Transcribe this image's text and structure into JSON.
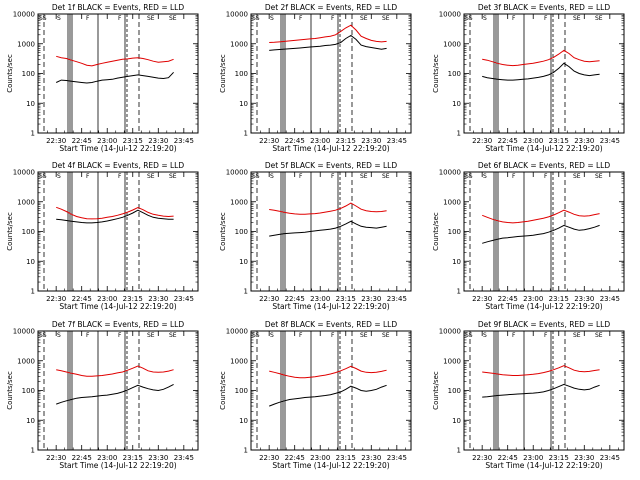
{
  "figure": {
    "xlabel": "Start Time (14-Jul-12 22:19:20)",
    "ylabel": "Counts/sec",
    "ytick_labels": [
      "1",
      "10",
      "100",
      "1000",
      "10000"
    ],
    "xtick_labels": [
      "22:30",
      "22:45",
      "23:00",
      "23:15",
      "23:30",
      "23:45"
    ],
    "corner_labels": [
      "SS",
      "S",
      "F",
      "F",
      "SE",
      "SE"
    ]
  },
  "chart_data": [
    {
      "type": "line",
      "title": "Det 1f BLACK = Events, RED = LLD",
      "xlabel": "Start Time (14-Jul-12 22:19:20)",
      "ylabel": "Counts/sec",
      "yscale": "log",
      "ylim": [
        1,
        10000
      ],
      "x_minutes": [
        30,
        33,
        36,
        39,
        42,
        45,
        48,
        51,
        54,
        57,
        60,
        63,
        66,
        69,
        72,
        75,
        78,
        81,
        84,
        87,
        90,
        93,
        96,
        99
      ],
      "series": [
        {
          "name": "Events",
          "color": "#000000",
          "values": [
            50,
            60,
            58,
            55,
            52,
            50,
            48,
            50,
            55,
            60,
            62,
            64,
            70,
            75,
            80,
            85,
            90,
            85,
            80,
            75,
            70,
            68,
            72,
            110
          ]
        },
        {
          "name": "LLD",
          "color": "#e00000",
          "values": [
            380,
            340,
            320,
            280,
            250,
            220,
            190,
            180,
            200,
            220,
            240,
            260,
            280,
            300,
            310,
            330,
            340,
            320,
            290,
            260,
            240,
            250,
            260,
            300
          ]
        }
      ]
    },
    {
      "type": "line",
      "title": "Det 2f BLACK = Events, RED = LLD",
      "xlabel": "Start Time (14-Jul-12 22:19:20)",
      "ylabel": "Counts/sec",
      "yscale": "log",
      "ylim": [
        1,
        10000
      ],
      "x_minutes": [
        30,
        33,
        36,
        39,
        42,
        45,
        48,
        51,
        54,
        57,
        60,
        63,
        66,
        69,
        72,
        75,
        78,
        81,
        84,
        87,
        90,
        93,
        96,
        99
      ],
      "series": [
        {
          "name": "Events",
          "color": "#000000",
          "values": [
            600,
            620,
            640,
            660,
            680,
            700,
            720,
            750,
            780,
            800,
            830,
            870,
            900,
            950,
            1100,
            1500,
            1900,
            1400,
            900,
            800,
            750,
            700,
            650,
            700
          ]
        },
        {
          "name": "LLD",
          "color": "#e00000",
          "values": [
            1100,
            1120,
            1150,
            1200,
            1250,
            1300,
            1350,
            1400,
            1450,
            1500,
            1600,
            1700,
            1800,
            2000,
            2600,
            3400,
            4200,
            2900,
            1800,
            1500,
            1300,
            1200,
            1150,
            1200
          ]
        }
      ]
    },
    {
      "type": "line",
      "title": "Det 3f BLACK = Events, RED = LLD",
      "xlabel": "Start Time (14-Jul-12 22:19:20)",
      "ylabel": "Counts/sec",
      "yscale": "log",
      "ylim": [
        1,
        10000
      ],
      "x_minutes": [
        30,
        33,
        36,
        39,
        42,
        45,
        48,
        51,
        54,
        57,
        60,
        63,
        66,
        69,
        72,
        75,
        78,
        81,
        84,
        87,
        90,
        93,
        96,
        99
      ],
      "series": [
        {
          "name": "Events",
          "color": "#000000",
          "values": [
            80,
            72,
            68,
            64,
            62,
            60,
            60,
            62,
            64,
            66,
            70,
            74,
            80,
            90,
            110,
            150,
            220,
            170,
            120,
            100,
            90,
            85,
            90,
            95
          ]
        },
        {
          "name": "LLD",
          "color": "#e00000",
          "values": [
            300,
            280,
            250,
            220,
            200,
            190,
            185,
            190,
            200,
            210,
            220,
            240,
            260,
            290,
            350,
            450,
            600,
            470,
            340,
            290,
            260,
            250,
            260,
            270
          ]
        }
      ]
    },
    {
      "type": "line",
      "title": "Det 4f BLACK = Events, RED = LLD",
      "xlabel": "Start Time (14-Jul-12 22:19:20)",
      "ylabel": "Counts/sec",
      "yscale": "log",
      "ylim": [
        1,
        10000
      ],
      "x_minutes": [
        30,
        33,
        36,
        39,
        42,
        45,
        48,
        51,
        54,
        57,
        60,
        63,
        66,
        69,
        72,
        75,
        78,
        81,
        84,
        87,
        90,
        93,
        96,
        99
      ],
      "series": [
        {
          "name": "Events",
          "color": "#000000",
          "values": [
            260,
            250,
            235,
            220,
            210,
            200,
            195,
            195,
            200,
            210,
            225,
            245,
            270,
            300,
            350,
            420,
            520,
            430,
            350,
            300,
            280,
            270,
            260,
            260
          ]
        },
        {
          "name": "LLD",
          "color": "#e00000",
          "values": [
            650,
            560,
            470,
            380,
            320,
            290,
            270,
            265,
            270,
            280,
            300,
            320,
            350,
            390,
            450,
            530,
            640,
            540,
            440,
            380,
            350,
            330,
            320,
            330
          ]
        }
      ]
    },
    {
      "type": "line",
      "title": "Det 5f BLACK = Events, RED = LLD",
      "xlabel": "Start Time (14-Jul-12 22:19:20)",
      "ylabel": "Counts/sec",
      "yscale": "log",
      "ylim": [
        1,
        10000
      ],
      "x_minutes": [
        30,
        33,
        36,
        39,
        42,
        45,
        48,
        51,
        54,
        57,
        60,
        63,
        66,
        69,
        72,
        75,
        78,
        81,
        84,
        87,
        90,
        93,
        96,
        99
      ],
      "series": [
        {
          "name": "Events",
          "color": "#000000",
          "values": [
            70,
            75,
            80,
            85,
            88,
            90,
            92,
            95,
            100,
            105,
            110,
            115,
            120,
            130,
            150,
            180,
            220,
            180,
            150,
            140,
            135,
            130,
            140,
            150
          ]
        },
        {
          "name": "LLD",
          "color": "#e00000",
          "values": [
            550,
            520,
            480,
            440,
            410,
            390,
            380,
            380,
            390,
            400,
            420,
            450,
            480,
            520,
            600,
            720,
            900,
            720,
            560,
            500,
            470,
            460,
            470,
            500
          ]
        }
      ]
    },
    {
      "type": "line",
      "title": "Det 6f BLACK = Events, RED = LLD",
      "xlabel": "Start Time (14-Jul-12 22:19:20)",
      "ylabel": "Counts/sec",
      "yscale": "log",
      "ylim": [
        1,
        10000
      ],
      "x_minutes": [
        30,
        33,
        36,
        39,
        42,
        45,
        48,
        51,
        54,
        57,
        60,
        63,
        66,
        69,
        72,
        75,
        78,
        81,
        84,
        87,
        90,
        93,
        96,
        99
      ],
      "series": [
        {
          "name": "Events",
          "color": "#000000",
          "values": [
            40,
            45,
            50,
            55,
            60,
            62,
            65,
            68,
            70,
            72,
            75,
            80,
            85,
            95,
            110,
            130,
            160,
            140,
            120,
            110,
            115,
            125,
            140,
            160
          ]
        },
        {
          "name": "LLD",
          "color": "#e00000",
          "values": [
            350,
            300,
            260,
            230,
            210,
            200,
            195,
            200,
            210,
            220,
            240,
            260,
            280,
            310,
            360,
            430,
            520,
            450,
            380,
            340,
            330,
            340,
            370,
            400
          ]
        }
      ]
    },
    {
      "type": "line",
      "title": "Det 7f BLACK = Events, RED = LLD",
      "xlabel": "Start Time (14-Jul-12 22:19:20)",
      "ylabel": "Counts/sec",
      "yscale": "log",
      "ylim": [
        1,
        10000
      ],
      "x_minutes": [
        30,
        33,
        36,
        39,
        42,
        45,
        48,
        51,
        54,
        57,
        60,
        63,
        66,
        69,
        72,
        75,
        78,
        81,
        84,
        87,
        90,
        93,
        96,
        99
      ],
      "series": [
        {
          "name": "Events",
          "color": "#000000",
          "values": [
            35,
            40,
            45,
            50,
            55,
            58,
            60,
            62,
            65,
            68,
            70,
            75,
            80,
            90,
            105,
            125,
            150,
            130,
            115,
            105,
            100,
            110,
            130,
            160
          ]
        },
        {
          "name": "LLD",
          "color": "#e00000",
          "values": [
            500,
            460,
            420,
            380,
            350,
            320,
            300,
            300,
            310,
            320,
            340,
            360,
            390,
            420,
            480,
            560,
            660,
            560,
            460,
            420,
            410,
            420,
            450,
            500
          ]
        }
      ]
    },
    {
      "type": "line",
      "title": "Det 8f BLACK = Events, RED = LLD",
      "xlabel": "Start Time (14-Jul-12 22:19:20)",
      "ylabel": "Counts/sec",
      "yscale": "log",
      "ylim": [
        1,
        10000
      ],
      "x_minutes": [
        30,
        33,
        36,
        39,
        42,
        45,
        48,
        51,
        54,
        57,
        60,
        63,
        66,
        69,
        72,
        75,
        78,
        81,
        84,
        87,
        90,
        93,
        96,
        99
      ],
      "series": [
        {
          "name": "Events",
          "color": "#000000",
          "values": [
            30,
            35,
            40,
            45,
            50,
            52,
            55,
            58,
            60,
            62,
            65,
            68,
            72,
            80,
            90,
            110,
            140,
            120,
            100,
            95,
            100,
            110,
            130,
            150
          ]
        },
        {
          "name": "LLD",
          "color": "#e00000",
          "values": [
            450,
            410,
            370,
            330,
            300,
            280,
            270,
            270,
            280,
            290,
            310,
            330,
            360,
            400,
            460,
            540,
            650,
            550,
            450,
            410,
            400,
            410,
            440,
            480
          ]
        }
      ]
    },
    {
      "type": "line",
      "title": "Det 9f BLACK = Events, RED = LLD",
      "xlabel": "Start Time (14-Jul-12 22:19:20)",
      "ylabel": "Counts/sec",
      "yscale": "log",
      "ylim": [
        1,
        10000
      ],
      "x_minutes": [
        30,
        33,
        36,
        39,
        42,
        45,
        48,
        51,
        54,
        57,
        60,
        63,
        66,
        69,
        72,
        75,
        78,
        81,
        84,
        87,
        90,
        93,
        96,
        99
      ],
      "series": [
        {
          "name": "Events",
          "color": "#000000",
          "values": [
            60,
            62,
            65,
            68,
            70,
            72,
            74,
            76,
            78,
            80,
            82,
            85,
            90,
            100,
            115,
            135,
            160,
            140,
            120,
            110,
            105,
            110,
            130,
            150
          ]
        },
        {
          "name": "LLD",
          "color": "#e00000",
          "values": [
            420,
            400,
            380,
            360,
            340,
            330,
            320,
            320,
            330,
            340,
            350,
            370,
            400,
            440,
            500,
            580,
            680,
            580,
            480,
            440,
            430,
            440,
            470,
            500
          ]
        }
      ]
    }
  ]
}
